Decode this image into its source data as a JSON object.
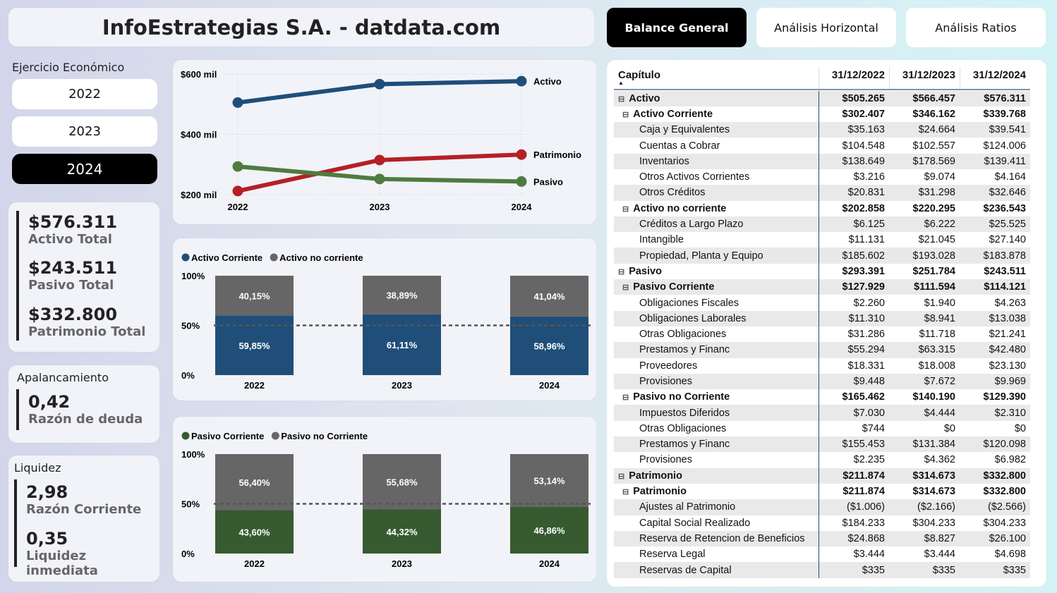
{
  "header": {
    "title": "InfoEstrategias S.A. - datdata.com"
  },
  "tabs": [
    {
      "label": "Balance General",
      "active": true
    },
    {
      "label": "Análisis Horizontal",
      "active": false
    },
    {
      "label": "Análisis Ratios",
      "active": false
    }
  ],
  "year_filter": {
    "label": "Ejercicio Económico",
    "options": [
      "2022",
      "2023",
      "2024"
    ],
    "selected": "2024"
  },
  "kpis": [
    {
      "value": "$576.311",
      "label": "Activo Total"
    },
    {
      "value": "$243.511",
      "label": "Pasivo Total"
    },
    {
      "value": "$332.800",
      "label": "Patrimonio Total"
    }
  ],
  "apalancamiento": {
    "title": "Apalancamiento",
    "value": "0,42",
    "label": "Razón de deuda"
  },
  "liquidez": {
    "title": "Liquidez",
    "items": [
      {
        "value": "2,98",
        "label": "Razón Corriente"
      },
      {
        "value": "0,35",
        "label": "Liquidez inmediata"
      }
    ]
  },
  "chart_data": [
    {
      "type": "line",
      "categories": [
        "2022",
        "2023",
        "2024"
      ],
      "ylim": [
        200,
        600
      ],
      "yticks": [
        "$200 mil",
        "$400 mil",
        "$600 mil"
      ],
      "grid": true,
      "legend": "end-labels",
      "series": [
        {
          "name": "Activo",
          "color": "#1f4e79",
          "values": [
            505.265,
            566.457,
            576.311
          ]
        },
        {
          "name": "Patrimonio",
          "color": "#b52025",
          "values": [
            211.874,
            314.673,
            332.8
          ]
        },
        {
          "name": "Pasivo",
          "color": "#4e7c3f",
          "values": [
            293.391,
            251.784,
            243.511
          ]
        }
      ]
    },
    {
      "type": "bar",
      "stacked": "100%",
      "categories": [
        "2022",
        "2023",
        "2024"
      ],
      "yticks": [
        "0%",
        "50%",
        "100%"
      ],
      "legend": "top-left",
      "reference_line": 50,
      "series": [
        {
          "name": "Activo Corriente",
          "color": "#1f4e79",
          "values": [
            59.85,
            61.11,
            58.96
          ],
          "labels": [
            "59,85%",
            "61,11%",
            "58,96%"
          ]
        },
        {
          "name": "Activo no corriente",
          "color": "#666666",
          "values": [
            40.15,
            38.89,
            41.04
          ],
          "labels": [
            "40,15%",
            "38,89%",
            "41,04%"
          ]
        }
      ]
    },
    {
      "type": "bar",
      "stacked": "100%",
      "categories": [
        "2022",
        "2023",
        "2024"
      ],
      "yticks": [
        "0%",
        "50%",
        "100%"
      ],
      "legend": "top-left",
      "reference_line": 50,
      "series": [
        {
          "name": "Pasivo Corriente",
          "color": "#375a30",
          "values": [
            43.6,
            44.32,
            46.86
          ],
          "labels": [
            "43,60%",
            "44,32%",
            "46,86%"
          ]
        },
        {
          "name": "Pasivo no Corriente",
          "color": "#666666",
          "values": [
            56.4,
            55.68,
            53.14
          ],
          "labels": [
            "56,40%",
            "55,68%",
            "53,14%"
          ]
        }
      ]
    }
  ],
  "table": {
    "headers": [
      "Capítulo",
      "31/12/2022",
      "31/12/2023",
      "31/12/2024"
    ],
    "rows": [
      [
        "0",
        "Activo",
        "$505.265",
        "$566.457",
        "$576.311"
      ],
      [
        "1",
        "Activo Corriente",
        "$302.407",
        "$346.162",
        "$339.768"
      ],
      [
        "2",
        "Caja y Equivalentes",
        "$35.163",
        "$24.664",
        "$39.541"
      ],
      [
        "2",
        "Cuentas a Cobrar",
        "$104.548",
        "$102.557",
        "$124.006"
      ],
      [
        "2",
        "Inventarios",
        "$138.649",
        "$178.569",
        "$139.411"
      ],
      [
        "2",
        "Otros Activos Corrientes",
        "$3.216",
        "$9.074",
        "$4.164"
      ],
      [
        "2",
        "Otros Créditos",
        "$20.831",
        "$31.298",
        "$32.646"
      ],
      [
        "1",
        "Activo no corriente",
        "$202.858",
        "$220.295",
        "$236.543"
      ],
      [
        "2",
        "Créditos a Largo Plazo",
        "$6.125",
        "$6.222",
        "$25.525"
      ],
      [
        "2",
        "Intangible",
        "$11.131",
        "$21.045",
        "$27.140"
      ],
      [
        "2",
        "Propiedad, Planta y Equipo",
        "$185.602",
        "$193.028",
        "$183.878"
      ],
      [
        "0",
        "Pasivo",
        "$293.391",
        "$251.784",
        "$243.511"
      ],
      [
        "1",
        "Pasivo Corriente",
        "$127.929",
        "$111.594",
        "$114.121"
      ],
      [
        "2",
        "Obligaciones Fiscales",
        "$2.260",
        "$1.940",
        "$4.263"
      ],
      [
        "2",
        "Obligaciones Laborales",
        "$11.310",
        "$8.941",
        "$13.038"
      ],
      [
        "2",
        "Otras Obligaciones",
        "$31.286",
        "$11.718",
        "$21.241"
      ],
      [
        "2",
        "Prestamos y Financ",
        "$55.294",
        "$63.315",
        "$42.480"
      ],
      [
        "2",
        "Proveedores",
        "$18.331",
        "$18.008",
        "$23.130"
      ],
      [
        "2",
        "Provisiones",
        "$9.448",
        "$7.672",
        "$9.969"
      ],
      [
        "1",
        "Pasivo no Corriente",
        "$165.462",
        "$140.190",
        "$129.390"
      ],
      [
        "2",
        "Impuestos Diferidos",
        "$7.030",
        "$4.444",
        "$2.310"
      ],
      [
        "2",
        "Otras Obligaciones",
        "$744",
        "$0",
        "$0"
      ],
      [
        "2",
        "Prestamos y Financ",
        "$155.453",
        "$131.384",
        "$120.098"
      ],
      [
        "2",
        "Provisiones",
        "$2.235",
        "$4.362",
        "$6.982"
      ],
      [
        "0",
        "Patrimonio",
        "$211.874",
        "$314.673",
        "$332.800"
      ],
      [
        "1",
        "Patrimonio",
        "$211.874",
        "$314.673",
        "$332.800"
      ],
      [
        "2",
        "Ajustes al Patrimonio",
        "($1.006)",
        "($2.166)",
        "($2.566)"
      ],
      [
        "2",
        "Capital Social Realizado",
        "$184.233",
        "$304.233",
        "$304.233"
      ],
      [
        "2",
        "Reserva de Retencion de Beneficios",
        "$24.868",
        "$8.827",
        "$26.100"
      ],
      [
        "2",
        "Reserva Legal",
        "$3.444",
        "$3.444",
        "$4.698"
      ],
      [
        "2",
        "Reservas de Capital",
        "$335",
        "$335",
        "$335"
      ]
    ]
  }
}
